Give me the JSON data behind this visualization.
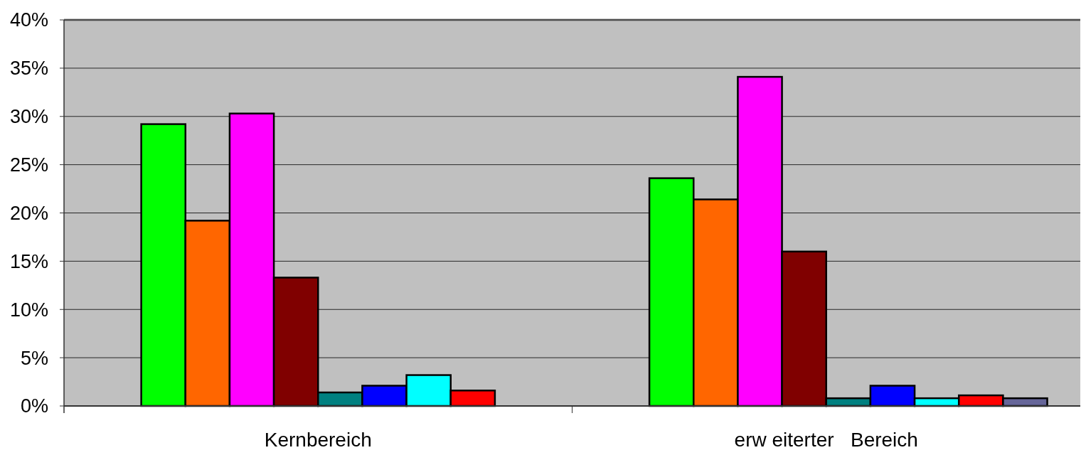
{
  "chart_data": {
    "type": "bar",
    "categories": [
      "Kernbereich",
      "erw eiterter   Bereich"
    ],
    "series": [
      {
        "color": "#00ff00",
        "values": [
          29.2,
          23.6
        ]
      },
      {
        "color": "#ff6600",
        "values": [
          19.2,
          21.4
        ]
      },
      {
        "color": "#ff00ff",
        "values": [
          30.3,
          34.1
        ]
      },
      {
        "color": "#800000",
        "values": [
          13.3,
          16.0
        ]
      },
      {
        "color": "#008080",
        "values": [
          1.4,
          0.8
        ]
      },
      {
        "color": "#0000ff",
        "values": [
          2.1,
          2.1
        ]
      },
      {
        "color": "#00ffff",
        "values": [
          3.2,
          0.8
        ]
      },
      {
        "color": "#ff0000",
        "values": [
          1.6,
          1.1
        ]
      },
      {
        "color": "#666699",
        "values": [
          null,
          0.8
        ]
      }
    ],
    "ylim": [
      0,
      40
    ],
    "yticks": [
      {
        "value": 0,
        "label": "0%"
      },
      {
        "value": 5,
        "label": "5%"
      },
      {
        "value": 10,
        "label": "10%"
      },
      {
        "value": 15,
        "label": "15%"
      },
      {
        "value": 20,
        "label": "20%"
      },
      {
        "value": 25,
        "label": "25%"
      },
      {
        "value": 30,
        "label": "30%"
      },
      {
        "value": 35,
        "label": "35%"
      },
      {
        "value": 40,
        "label": "40%"
      }
    ],
    "grid": "y"
  }
}
